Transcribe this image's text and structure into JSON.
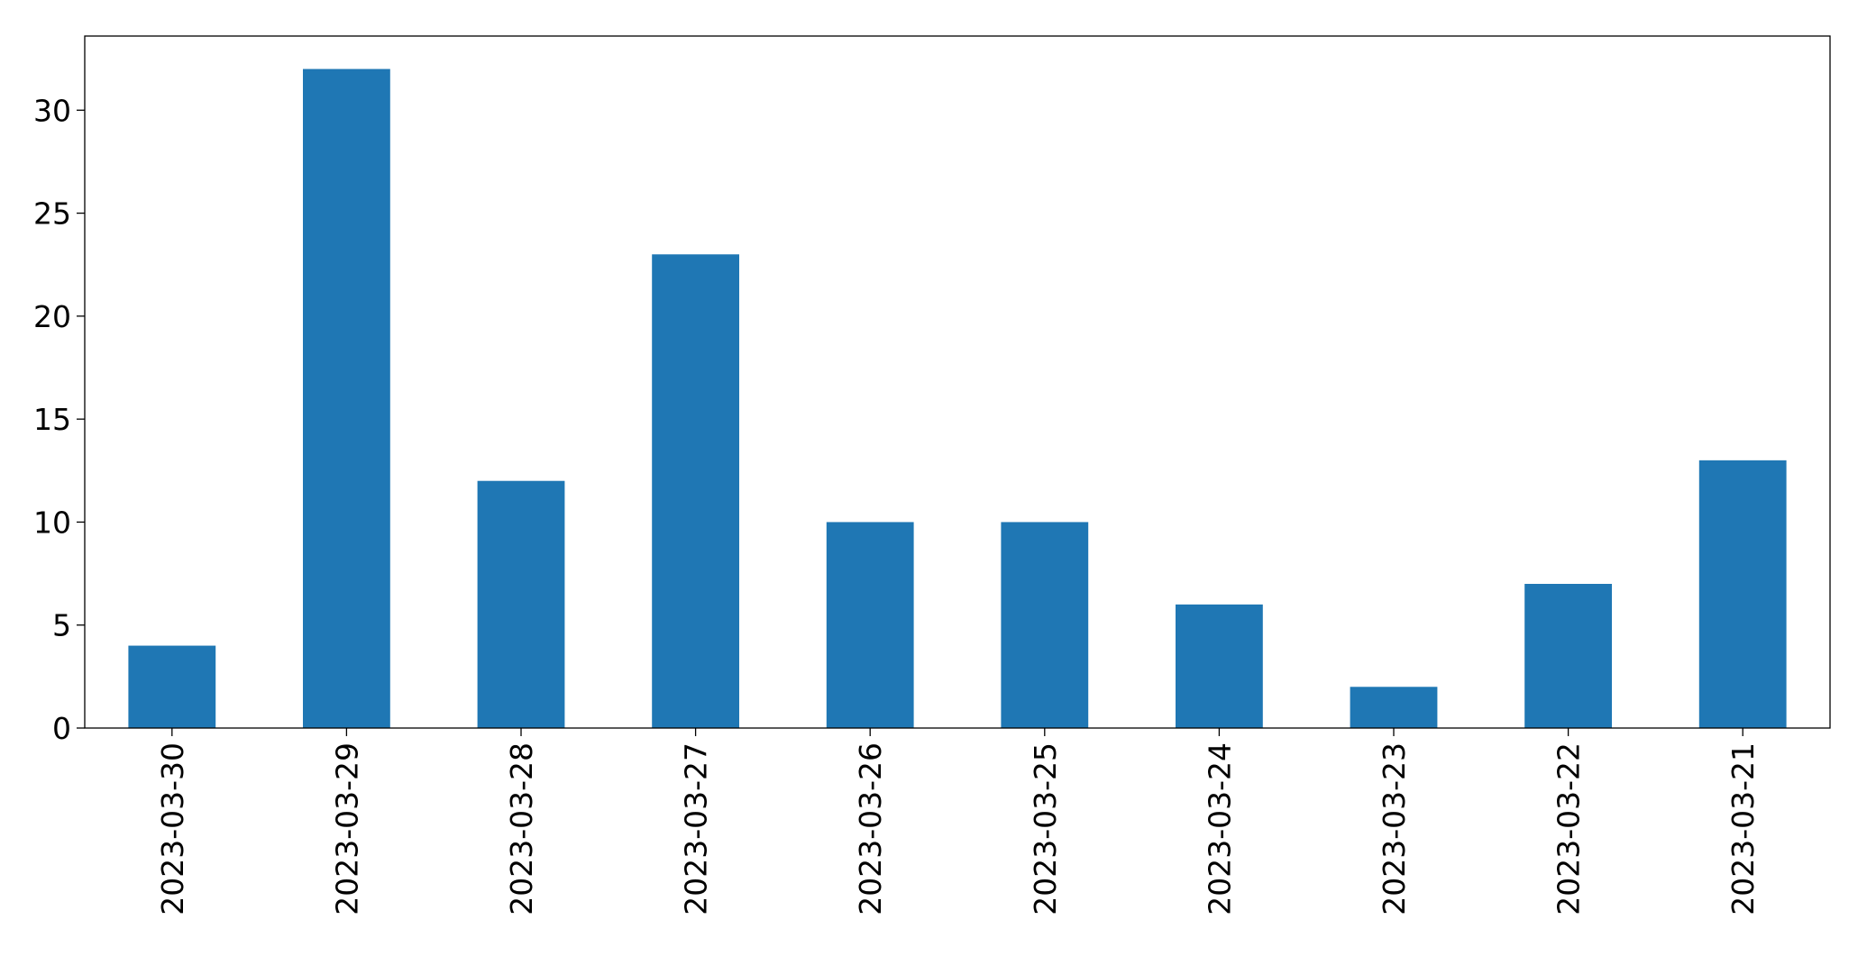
{
  "chart_data": {
    "type": "bar",
    "categories": [
      "2023-03-30",
      "2023-03-29",
      "2023-03-28",
      "2023-03-27",
      "2023-03-26",
      "2023-03-25",
      "2023-03-24",
      "2023-03-23",
      "2023-03-22",
      "2023-03-21"
    ],
    "values": [
      4,
      32,
      12,
      23,
      10,
      10,
      6,
      2,
      7,
      13
    ],
    "color": "#1f77b4",
    "ylim": [
      0,
      33.6
    ],
    "yticks": [
      0,
      5,
      10,
      15,
      20,
      25,
      30
    ],
    "grid": false
  }
}
